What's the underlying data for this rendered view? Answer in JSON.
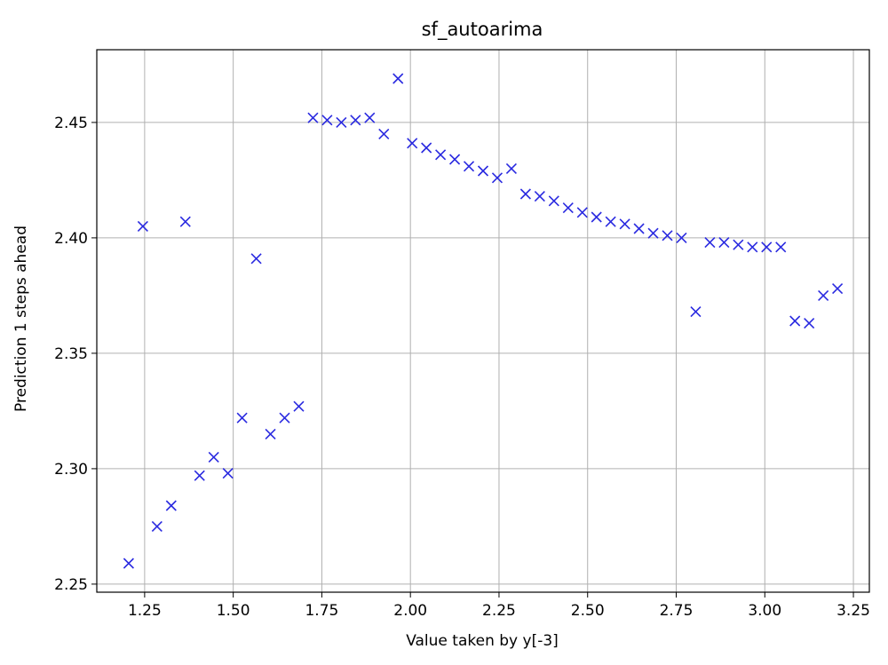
{
  "chart_data": {
    "type": "scatter",
    "title": "sf_autoarima",
    "xlabel": "Value taken by y[-3]",
    "ylabel": "Prediction 1 steps ahead",
    "xlim": [
      1.115,
      3.295
    ],
    "ylim": [
      2.2465,
      2.4815
    ],
    "xticks": [
      1.25,
      1.5,
      1.75,
      2.0,
      2.25,
      2.5,
      2.75,
      3.0,
      3.25
    ],
    "xtick_labels": [
      "1.25",
      "1.50",
      "1.75",
      "2.00",
      "2.25",
      "2.50",
      "2.75",
      "3.00",
      "3.25"
    ],
    "yticks": [
      2.25,
      2.3,
      2.35,
      2.4,
      2.45
    ],
    "ytick_labels": [
      "2.25",
      "2.30",
      "2.35",
      "2.40",
      "2.45"
    ],
    "grid": true,
    "marker": "x",
    "color": "#2a2ae0",
    "points": [
      [
        1.205,
        2.259
      ],
      [
        1.245,
        2.405
      ],
      [
        1.285,
        2.275
      ],
      [
        1.325,
        2.284
      ],
      [
        1.365,
        2.407
      ],
      [
        1.405,
        2.297
      ],
      [
        1.445,
        2.305
      ],
      [
        1.485,
        2.298
      ],
      [
        1.525,
        2.322
      ],
      [
        1.565,
        2.391
      ],
      [
        1.605,
        2.315
      ],
      [
        1.645,
        2.322
      ],
      [
        1.685,
        2.327
      ],
      [
        1.725,
        2.452
      ],
      [
        1.765,
        2.451
      ],
      [
        1.805,
        2.45
      ],
      [
        1.845,
        2.451
      ],
      [
        1.885,
        2.452
      ],
      [
        1.925,
        2.445
      ],
      [
        1.965,
        2.469
      ],
      [
        2.005,
        2.441
      ],
      [
        2.045,
        2.439
      ],
      [
        2.085,
        2.436
      ],
      [
        2.125,
        2.434
      ],
      [
        2.165,
        2.431
      ],
      [
        2.205,
        2.429
      ],
      [
        2.245,
        2.426
      ],
      [
        2.285,
        2.43
      ],
      [
        2.325,
        2.419
      ],
      [
        2.365,
        2.418
      ],
      [
        2.405,
        2.416
      ],
      [
        2.445,
        2.413
      ],
      [
        2.485,
        2.411
      ],
      [
        2.525,
        2.409
      ],
      [
        2.565,
        2.407
      ],
      [
        2.605,
        2.406
      ],
      [
        2.645,
        2.404
      ],
      [
        2.685,
        2.402
      ],
      [
        2.725,
        2.401
      ],
      [
        2.765,
        2.4
      ],
      [
        2.805,
        2.368
      ],
      [
        2.845,
        2.398
      ],
      [
        2.885,
        2.398
      ],
      [
        2.925,
        2.397
      ],
      [
        2.965,
        2.396
      ],
      [
        3.005,
        2.396
      ],
      [
        3.045,
        2.396
      ],
      [
        3.085,
        2.364
      ],
      [
        3.125,
        2.363
      ],
      [
        3.165,
        2.375
      ],
      [
        3.205,
        2.378
      ]
    ]
  }
}
